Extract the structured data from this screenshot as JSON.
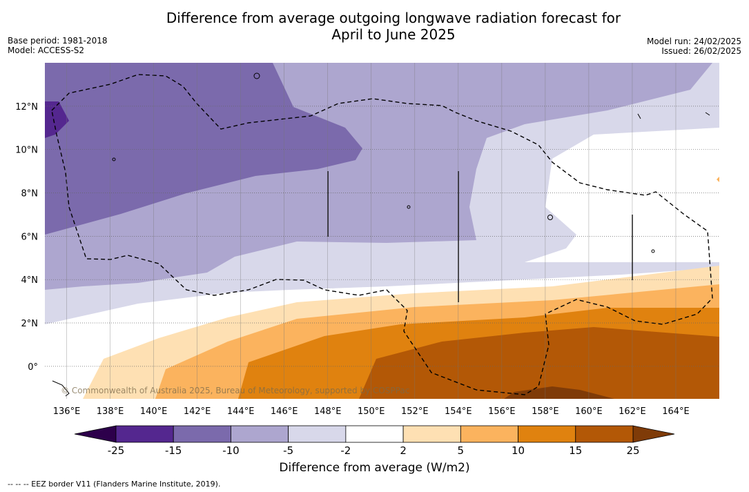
{
  "title": {
    "line1": "Difference from average outgoing longwave radiation forecast for",
    "line2": "April to June 2025"
  },
  "meta": {
    "base_period": "Base period: 1981-2018",
    "model": "Model: ACCESS-S2",
    "model_run": "Model run: 24/02/2025",
    "issued": "Issued: 26/02/2025"
  },
  "map": {
    "lon_labels": [
      "136°E",
      "138°E",
      "140°E",
      "142°E",
      "144°E",
      "146°E",
      "148°E",
      "150°E",
      "152°E",
      "154°E",
      "156°E",
      "158°E",
      "160°E",
      "162°E",
      "164°E"
    ],
    "lat_labels": [
      "12°N",
      "10°N",
      "8°N",
      "6°N",
      "4°N",
      "2°N",
      "0°"
    ],
    "lon_values": [
      136,
      138,
      140,
      142,
      144,
      146,
      148,
      150,
      152,
      154,
      156,
      158,
      160,
      162,
      164
    ],
    "lat_values": [
      12,
      10,
      8,
      6,
      4,
      2,
      0
    ],
    "extent": {
      "lon_min": 135,
      "lon_max": 166,
      "lat_min": -1.5,
      "lat_max": 14
    },
    "watermark": "© Commonwealth of Australia 2025, Bureau of Meteorology, supported by COSPPac",
    "grid": true
  },
  "colorbar": {
    "title": "Difference from average (W/m2)",
    "tick_labels": [
      "-25",
      "-15",
      "-10",
      "-5",
      "-2",
      "2",
      "5",
      "10",
      "15",
      "25"
    ],
    "colors": [
      "#54278f",
      "#7b6aac",
      "#ada6cf",
      "#d8d8ea",
      "#ffffff",
      "#fee0b3",
      "#fbb35e",
      "#e0820f",
      "#b35806"
    ],
    "under_color": "#2d004b",
    "over_color": "#7f3b08"
  },
  "legend": {
    "eez": "--  --  -- EEZ border V11 (Flanders Marine Institute, 2019)."
  }
}
